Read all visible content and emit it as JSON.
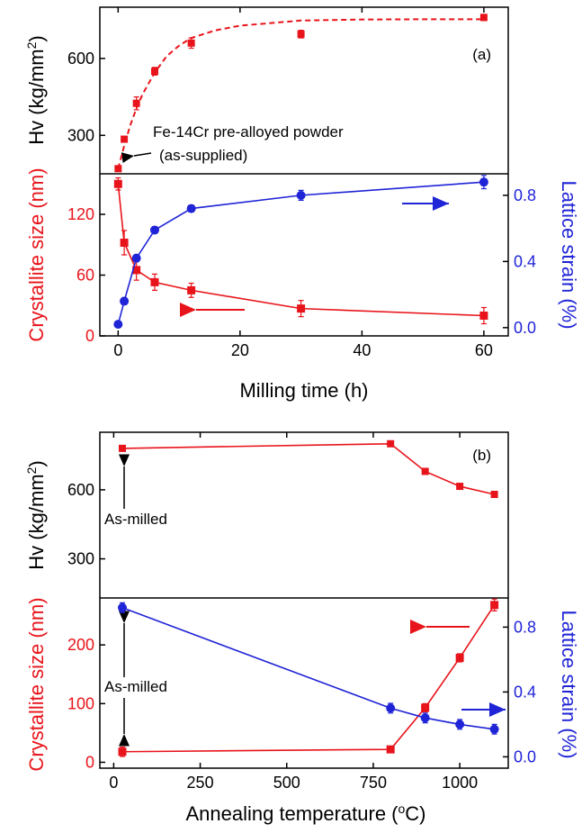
{
  "colors": {
    "hv": "#e8141b",
    "size": "#e8141b",
    "strain": "#1f24d6",
    "axis": "#000000"
  },
  "chart_data": [
    {
      "panel": "(a)",
      "type": "line",
      "annotation": "Fe-14Cr pre-alloyed powder",
      "annotation2": "(as-supplied)",
      "xlabel": "Milling time (h)",
      "xlim": [
        -3,
        64
      ],
      "xticks": [
        "0",
        "20",
        "40",
        "60"
      ],
      "top": {
        "ylabel": "Hv (kg/mm²)",
        "ylim": [
          150,
          800
        ],
        "yticks": [
          "300",
          "600"
        ],
        "series": [
          {
            "x": [
              0,
              1,
              3,
              6,
              12,
              30,
              60
            ],
            "y": [
              170,
              285,
              425,
              550,
              660,
              695,
              760
            ],
            "err": [
              8,
              8,
              25,
              15,
              20,
              15,
              12
            ]
          }
        ],
        "fit": {
          "x": [
            0,
            1,
            2,
            3,
            4,
            6,
            8,
            10,
            12,
            16,
            20,
            30,
            40,
            50,
            60
          ],
          "y": [
            170,
            260,
            340,
            405,
            460,
            545,
            610,
            650,
            680,
            710,
            728,
            748,
            752,
            753,
            753
          ]
        }
      },
      "bottom": {
        "ylabel": "Crystallite size (nm)",
        "ylim": [
          0,
          160
        ],
        "yticks": [
          "0",
          "60",
          "120"
        ],
        "y2label": "Lattice strain (%)",
        "y2lim": [
          -0.05,
          0.93
        ],
        "y2ticks": [
          "0.0",
          "0.4",
          "0.8"
        ],
        "series": [
          {
            "name": "size",
            "x": [
              0,
              1,
              3,
              6,
              12,
              30,
              60
            ],
            "y": [
              150,
              92,
              65,
              53,
              45,
              27,
              20
            ],
            "err": [
              6,
              12,
              10,
              8,
              7,
              8,
              8
            ]
          },
          {
            "name": "strain",
            "x": [
              0,
              1,
              3,
              6,
              12,
              30,
              60
            ],
            "y": [
              0.02,
              0.16,
              0.42,
              0.59,
              0.72,
              0.8,
              0.88
            ],
            "err": [
              0,
              0.02,
              0.02,
              0.02,
              0.02,
              0.03,
              0.04
            ]
          }
        ]
      }
    },
    {
      "panel": "(b)",
      "type": "line",
      "annotation": "As-milled",
      "xlabel": "Annealing temperature (°C)",
      "xlim": [
        -40,
        1140
      ],
      "xticks": [
        "0",
        "250",
        "500",
        "750",
        "1000"
      ],
      "top": {
        "ylabel": "Hv (kg/mm²)",
        "ylim": [
          130,
          850
        ],
        "yticks": [
          "300",
          "600"
        ],
        "series": [
          {
            "x": [
              25,
              800,
              900,
              1000,
              1100
            ],
            "y": [
              780,
              800,
              680,
              615,
              580
            ],
            "err": [
              0,
              0,
              0,
              10,
              0
            ]
          }
        ]
      },
      "bottom": {
        "ylabel": "Crystallite size (nm)",
        "ylim": [
          -10,
          280
        ],
        "yticks": [
          "0",
          "100",
          "200"
        ],
        "y2label": "Lattice strain (%)",
        "y2lim": [
          -0.07,
          0.98
        ],
        "y2ticks": [
          "0.0",
          "0.4",
          "0.8"
        ],
        "series": [
          {
            "name": "size",
            "x": [
              25,
              800,
              900,
              1000,
              1100
            ],
            "y": [
              18,
              22,
              93,
              178,
              268
            ],
            "err": [
              8,
              0,
              7,
              7,
              10
            ]
          },
          {
            "name": "strain",
            "x": [
              25,
              800,
              900,
              1000,
              1100
            ],
            "y": [
              0.92,
              0.3,
              0.24,
              0.2,
              0.17
            ],
            "err": [
              0.03,
              0.03,
              0.03,
              0.03,
              0.03
            ]
          }
        ]
      }
    }
  ]
}
